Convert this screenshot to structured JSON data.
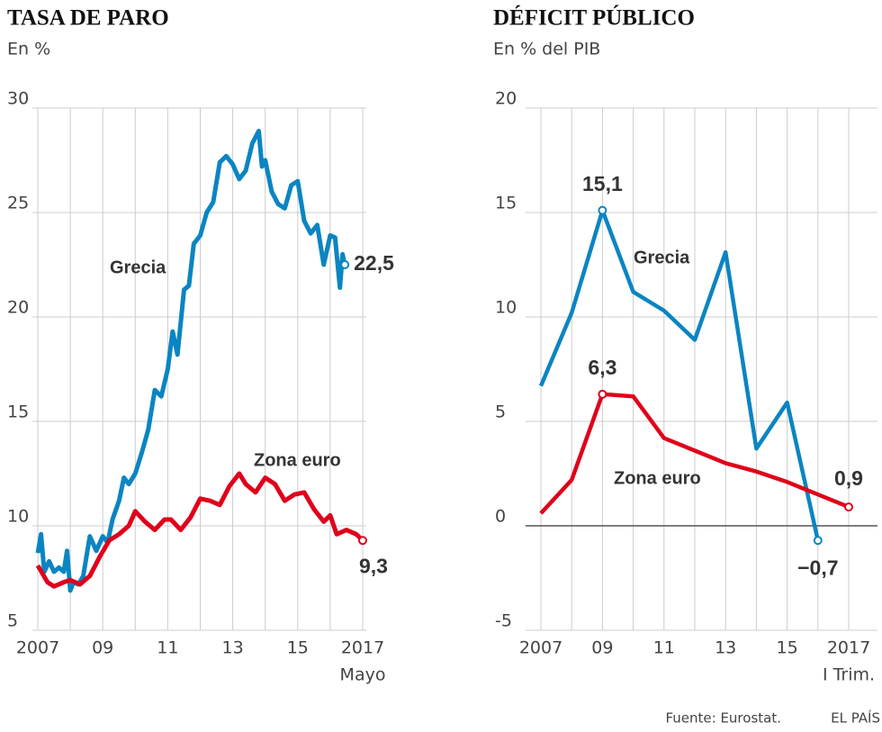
{
  "chart_data": [
    {
      "type": "line",
      "title": "TASA DE PARO",
      "subtitle": "En %",
      "xlim": [
        2007,
        2017
      ],
      "ylim": [
        5,
        30
      ],
      "yticks": [
        5,
        10,
        15,
        20,
        25,
        30
      ],
      "grid": true,
      "xticks": [
        {
          "value": 2007,
          "label": "2007"
        },
        {
          "value": 2009,
          "label": "09"
        },
        {
          "value": 2011,
          "label": "11"
        },
        {
          "value": 2013,
          "label": "13"
        },
        {
          "value": 2015,
          "label": "15"
        },
        {
          "value": 2017,
          "label": "2017"
        }
      ],
      "minor_xticks": [
        2008,
        2010,
        2012,
        2014,
        2016
      ],
      "x_note": "Mayo",
      "series": [
        {
          "name": "Grecia",
          "color": "#0a85c2",
          "x": [
            2007,
            2007.1,
            2007.2,
            2007.35,
            2007.5,
            2007.65,
            2007.8,
            2007.9,
            2008.0,
            2008.1,
            2008.25,
            2008.4,
            2008.6,
            2008.8,
            2009.0,
            2009.15,
            2009.3,
            2009.5,
            2009.65,
            2009.8,
            2010.0,
            2010.2,
            2010.4,
            2010.6,
            2010.8,
            2011.0,
            2011.15,
            2011.3,
            2011.5,
            2011.65,
            2011.8,
            2012.0,
            2012.2,
            2012.4,
            2012.6,
            2012.8,
            2013.0,
            2013.2,
            2013.4,
            2013.6,
            2013.8,
            2013.9,
            2014.0,
            2014.2,
            2014.4,
            2014.6,
            2014.8,
            2015.0,
            2015.2,
            2015.4,
            2015.6,
            2015.8,
            2016.0,
            2016.15,
            2016.3,
            2016.38,
            2016.45
          ],
          "values": [
            8.7,
            9.6,
            7.8,
            8.3,
            7.8,
            8.0,
            7.8,
            8.8,
            6.9,
            7.3,
            7.2,
            7.6,
            9.5,
            8.8,
            9.5,
            9.2,
            10.3,
            11.2,
            12.3,
            12.0,
            12.5,
            13.5,
            14.6,
            16.5,
            16.2,
            17.5,
            19.3,
            18.2,
            21.3,
            21.5,
            23.5,
            23.9,
            25.0,
            25.5,
            27.4,
            27.7,
            27.3,
            26.6,
            27.0,
            28.3,
            28.9,
            27.2,
            27.5,
            26.0,
            25.4,
            25.2,
            26.3,
            26.5,
            24.6,
            24.0,
            24.4,
            22.5,
            23.9,
            23.8,
            21.4,
            23.0,
            22.5
          ]
        },
        {
          "name": "Zona euro",
          "color": "#e0001b",
          "x": [
            2007,
            2007.3,
            2007.5,
            2007.8,
            2008.0,
            2008.3,
            2008.6,
            2008.9,
            2009.2,
            2009.5,
            2009.8,
            2010.0,
            2010.3,
            2010.6,
            2010.9,
            2011.1,
            2011.4,
            2011.7,
            2012.0,
            2012.3,
            2012.6,
            2012.9,
            2013.2,
            2013.4,
            2013.7,
            2014.0,
            2014.3,
            2014.6,
            2014.9,
            2015.2,
            2015.5,
            2015.8,
            2016.0,
            2016.2,
            2016.5,
            2016.8,
            2017.0
          ],
          "values": [
            8.1,
            7.3,
            7.1,
            7.3,
            7.4,
            7.2,
            7.6,
            8.5,
            9.3,
            9.6,
            10.0,
            10.7,
            10.2,
            9.8,
            10.3,
            10.3,
            9.8,
            10.4,
            11.3,
            11.2,
            11.0,
            11.9,
            12.5,
            12.0,
            11.6,
            12.3,
            12.0,
            11.2,
            11.5,
            11.6,
            10.8,
            10.2,
            10.5,
            9.6,
            9.8,
            9.6,
            9.3
          ]
        }
      ],
      "annotations": [
        {
          "text": "22,5",
          "x": 2016.45,
          "y": 22.5
        },
        {
          "text": "9,3",
          "x": 2017.0,
          "y": 9.3
        }
      ]
    },
    {
      "type": "line",
      "title": "DÉFICIT PÚBLICO",
      "subtitle": "En % del PIB",
      "xlim": [
        2007,
        2017
      ],
      "ylim": [
        -5,
        20
      ],
      "yticks": [
        -5,
        0,
        5,
        10,
        15,
        20
      ],
      "grid": true,
      "xticks": [
        {
          "value": 2007,
          "label": "2007"
        },
        {
          "value": 2009,
          "label": "09"
        },
        {
          "value": 2011,
          "label": "11"
        },
        {
          "value": 2013,
          "label": "13"
        },
        {
          "value": 2015,
          "label": "15"
        },
        {
          "value": 2017,
          "label": "2017"
        }
      ],
      "minor_xticks": [
        2008,
        2010,
        2012,
        2014,
        2016
      ],
      "x_note": "I Trim.",
      "series": [
        {
          "name": "Grecia",
          "color": "#0a85c2",
          "x": [
            2007,
            2008,
            2009,
            2010,
            2011,
            2012,
            2013,
            2014,
            2015,
            2016
          ],
          "values": [
            6.7,
            10.2,
            15.1,
            11.2,
            10.3,
            8.9,
            13.1,
            3.7,
            5.9,
            -0.7
          ]
        },
        {
          "name": "Zona euro",
          "color": "#e0001b",
          "x": [
            2007,
            2008,
            2009,
            2010,
            2011,
            2012,
            2013,
            2014,
            2015,
            2016,
            2017
          ],
          "values": [
            0.6,
            2.2,
            6.3,
            6.2,
            4.2,
            3.6,
            3.0,
            2.6,
            2.1,
            1.5,
            0.9
          ]
        }
      ],
      "annotations": [
        {
          "text": "15,1",
          "x": 2009,
          "y": 15.1
        },
        {
          "text": "6,3",
          "x": 2009,
          "y": 6.3
        },
        {
          "text": "0,9",
          "x": 2017,
          "y": 0.9
        },
        {
          "text": "−0,7",
          "x": 2016,
          "y": -0.7
        }
      ]
    }
  ],
  "source": "Fuente: Eurostat.",
  "brand": "EL PAÍS"
}
